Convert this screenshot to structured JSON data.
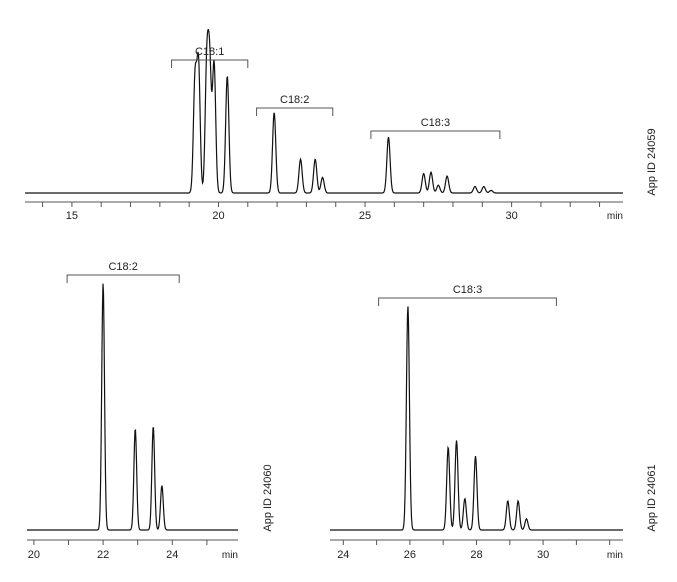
{
  "chart_data": [
    {
      "type": "line",
      "xlabel": "min",
      "ylabel": "",
      "xlim": [
        13.4,
        33.8
      ],
      "xticks": [
        15,
        20,
        25,
        30
      ],
      "minor_tick_step": 1,
      "grid": false,
      "side_label": "App ID 24059",
      "groups": [
        {
          "label": "C18:1",
          "range": [
            18.4,
            21.0
          ]
        },
        {
          "label": "C18:2",
          "range": [
            21.3,
            23.9
          ]
        },
        {
          "label": "C18:3",
          "range": [
            25.2,
            29.6
          ]
        }
      ],
      "peaks": [
        {
          "rt": 19.2,
          "height": 87
        },
        {
          "rt": 19.32,
          "height": 98
        },
        {
          "rt": 19.6,
          "height": 95
        },
        {
          "rt": 19.7,
          "height": 95
        },
        {
          "rt": 19.85,
          "height": 100
        },
        {
          "rt": 20.3,
          "height": 90
        },
        {
          "rt": 21.9,
          "height": 62
        },
        {
          "rt": 22.8,
          "height": 26
        },
        {
          "rt": 23.3,
          "height": 26
        },
        {
          "rt": 23.55,
          "height": 12
        },
        {
          "rt": 25.8,
          "height": 43
        },
        {
          "rt": 27.0,
          "height": 15
        },
        {
          "rt": 27.25,
          "height": 16
        },
        {
          "rt": 27.5,
          "height": 6
        },
        {
          "rt": 27.8,
          "height": 13
        },
        {
          "rt": 28.75,
          "height": 5
        },
        {
          "rt": 29.05,
          "height": 5
        },
        {
          "rt": 29.3,
          "height": 2
        }
      ]
    },
    {
      "type": "line",
      "xlabel": "min",
      "ylabel": "",
      "xlim": [
        19.8,
        25.9
      ],
      "xticks": [
        20,
        22,
        24
      ],
      "minor_tick_step": 1,
      "grid": false,
      "side_label": "App ID 24060",
      "groups": [
        {
          "label": "C18:2",
          "range": [
            20.96,
            24.2
          ]
        }
      ],
      "peaks": [
        {
          "rt": 22.0,
          "height": 100
        },
        {
          "rt": 22.93,
          "height": 41
        },
        {
          "rt": 23.45,
          "height": 42
        },
        {
          "rt": 23.7,
          "height": 18
        }
      ]
    },
    {
      "type": "line",
      "xlabel": "min",
      "ylabel": "",
      "xlim": [
        23.6,
        32.4
      ],
      "xticks": [
        24,
        26,
        28,
        30
      ],
      "minor_tick_step": 1,
      "grid": false,
      "side_label": "App ID 24061",
      "groups": [
        {
          "label": "C18:3",
          "range": [
            25.06,
            30.4
          ]
        }
      ],
      "peaks": [
        {
          "rt": 25.94,
          "height": 100
        },
        {
          "rt": 27.15,
          "height": 37
        },
        {
          "rt": 27.4,
          "height": 40
        },
        {
          "rt": 27.65,
          "height": 14
        },
        {
          "rt": 27.97,
          "height": 33
        },
        {
          "rt": 28.94,
          "height": 13
        },
        {
          "rt": 29.25,
          "height": 13
        },
        {
          "rt": 29.5,
          "height": 5
        }
      ]
    }
  ],
  "colors": {
    "trace": "#111111",
    "axis": "#555555",
    "text": "#222222"
  }
}
